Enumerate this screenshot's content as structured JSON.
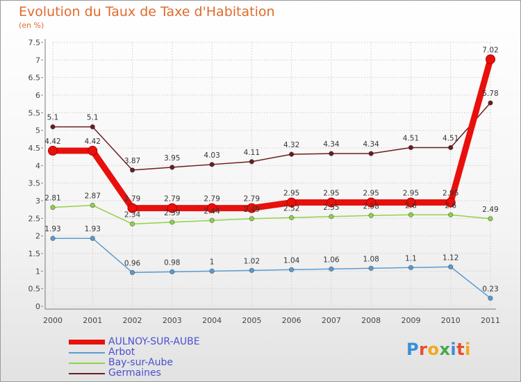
{
  "header": {
    "title": "Evolution du Taux de Taxe d'Habitation",
    "unit": "(en %)"
  },
  "brand": {
    "text": "Proxiti",
    "colors": [
      "#3a8fd6",
      "#e84c2c",
      "#f2a81d",
      "#4aa84a",
      "#3a8fd6",
      "#e84c2c",
      "#f2a81d"
    ]
  },
  "chart_data": {
    "type": "line",
    "x": [
      2000,
      2001,
      2002,
      2003,
      2004,
      2005,
      2006,
      2007,
      2008,
      2009,
      2010,
      2011
    ],
    "ylim": [
      0,
      7.5
    ],
    "yticks": [
      0,
      0.5,
      1,
      1.5,
      2,
      2.5,
      3,
      3.5,
      4,
      4.5,
      5,
      5.5,
      6,
      6.5,
      7,
      7.5
    ],
    "grid": true,
    "legend": "bottom-left",
    "series": [
      {
        "name": "AULNOY-SUR-AUBE",
        "color": "#e8100c",
        "values": [
          4.42,
          4.42,
          2.79,
          2.79,
          2.79,
          2.79,
          2.95,
          2.95,
          2.95,
          2.95,
          2.95,
          7.02
        ],
        "labels": [
          "4.42",
          "4.42",
          "2.79",
          "2.79",
          "2.79",
          "2.79",
          "2.95",
          "2.95",
          "2.95",
          "2.95",
          "2.95",
          "7.02"
        ]
      },
      {
        "name": "Arbot",
        "color": "#5b9bd0",
        "values": [
          1.93,
          1.93,
          0.96,
          0.98,
          1,
          1.02,
          1.04,
          1.06,
          1.08,
          1.1,
          1.12,
          0.23
        ],
        "labels": [
          "1.93",
          "1.93",
          "0.96",
          "0.98",
          "1",
          "1.02",
          "1.04",
          "1.06",
          "1.08",
          "1.1",
          "1.12",
          "0.23"
        ]
      },
      {
        "name": "Bay-sur-Aube",
        "color": "#8fd24a",
        "values": [
          2.81,
          2.87,
          2.34,
          2.39,
          2.44,
          2.49,
          2.52,
          2.55,
          2.58,
          2.6,
          2.6,
          2.49
        ],
        "labels": [
          "2.81",
          "2.87",
          "2.34",
          "2.39",
          "2.44",
          "2.49",
          "2.52",
          "2.55",
          "2.58",
          "2.6",
          "2.6",
          "2.49"
        ]
      },
      {
        "name": "Germaines",
        "color": "#6b1d1d",
        "values": [
          5.1,
          5.1,
          3.87,
          3.95,
          4.03,
          4.11,
          4.32,
          4.34,
          4.34,
          4.51,
          4.51,
          5.78
        ],
        "labels": [
          "5.1",
          "5.1",
          "3.87",
          "3.95",
          "4.03",
          "4.11",
          "4.32",
          "4.34",
          "4.34",
          "4.51",
          "4.51",
          "5.78"
        ]
      }
    ]
  }
}
